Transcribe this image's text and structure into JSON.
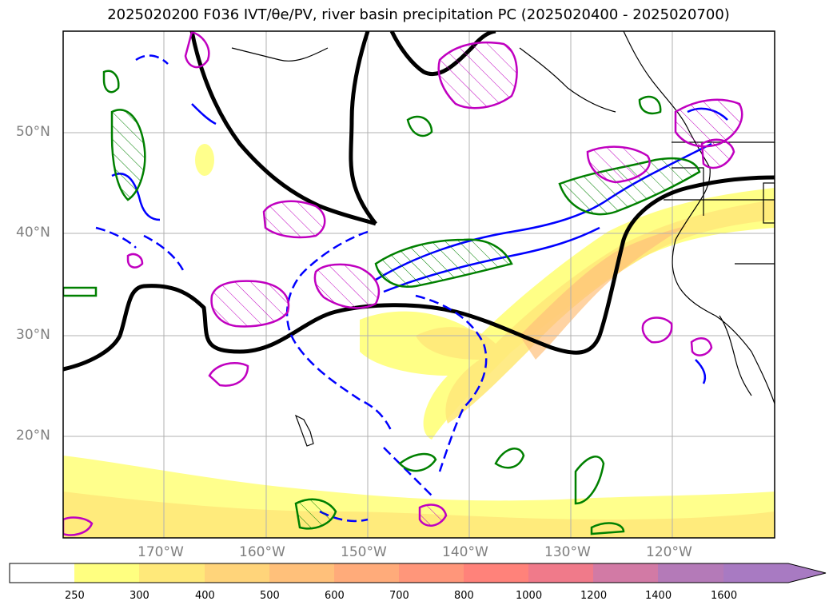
{
  "title": "2025020200 F036 IVT/θe/PV, river basin precipitation PC (2025020400 - 2025020700)",
  "map": {
    "lat_ticks": [
      "50°N",
      "40°N",
      "30°N",
      "20°N"
    ],
    "lon_ticks": [
      "170°W",
      "160°W",
      "150°W",
      "140°W",
      "130°W",
      "120°W"
    ]
  },
  "colorbar": {
    "levels": [
      "250",
      "300",
      "400",
      "500",
      "600",
      "700",
      "800",
      "1000",
      "1200",
      "1400",
      "1600"
    ],
    "colors": [
      "#ffffff",
      "#ffff80",
      "#ffe97a",
      "#ffd47a",
      "#ffc07a",
      "#ffab7a",
      "#ff967a",
      "#ff827a",
      "#f07a8a",
      "#d27aa5",
      "#b47ab8",
      "#a87ac2"
    ]
  },
  "colors": {
    "dashed_contour": "#0000ff",
    "solid_blue": "#0000ff",
    "green": "#008000",
    "magenta": "#c000c0",
    "black": "#000000"
  }
}
